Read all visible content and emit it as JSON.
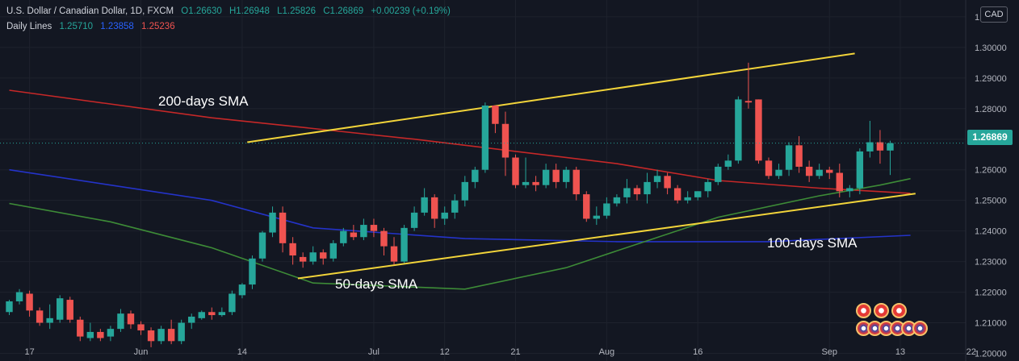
{
  "header": {
    "symbol": "U.S. Dollar / Canadian Dollar, 1D, FXCM",
    "open": "O1.26630",
    "high": "H1.26948",
    "low": "L1.25826",
    "close": "C1.26869",
    "change": "+0.00239 (+0.19%)",
    "indicator_name": "Daily Lines",
    "indicator_values": [
      "1.25710",
      "1.23858",
      "1.25236"
    ]
  },
  "currency": "CAD",
  "last_price": "1.26869",
  "annotations": {
    "sma200": "200-days SMA",
    "sma50": "50-days SMA",
    "sma100": "100-days SMA"
  },
  "colors": {
    "background": "#131722",
    "up": "#26a69a",
    "down": "#ef5350",
    "sma50": "#3d8b37",
    "sma100": "#2433c9",
    "sma200": "#c62828",
    "trend": "#f2d43a"
  },
  "chart_data": {
    "type": "candlestick",
    "ylim": [
      1.1975,
      1.3155
    ],
    "y_ticks": [
      "1.20000",
      "1.21000",
      "1.22000",
      "1.23000",
      "1.24000",
      "1.25000",
      "1.26000",
      "1.27000",
      "1.28000",
      "1.29000",
      "1.30000",
      "1.31000"
    ],
    "x_ticks": [
      {
        "label": "17",
        "i": 2
      },
      {
        "label": "Jun",
        "i": 13
      },
      {
        "label": "14",
        "i": 23
      },
      {
        "label": "Jul",
        "i": 36
      },
      {
        "label": "12",
        "i": 43
      },
      {
        "label": "21",
        "i": 50
      },
      {
        "label": "Aug",
        "i": 59
      },
      {
        "label": "16",
        "i": 68
      },
      {
        "label": "Sep",
        "i": 81
      },
      {
        "label": "13",
        "i": 88
      },
      {
        "label": "22",
        "i": 95
      }
    ],
    "candles": [
      [
        1.2135,
        1.217,
        1.2125,
        1.2175
      ],
      [
        1.217,
        1.22,
        1.216,
        1.221
      ],
      [
        1.2195,
        1.214,
        1.212,
        1.2205
      ],
      [
        1.214,
        1.21,
        1.209,
        1.215
      ],
      [
        1.21,
        1.2115,
        1.208,
        1.216
      ],
      [
        1.211,
        1.218,
        1.21,
        1.219
      ],
      [
        1.2175,
        1.211,
        1.21,
        1.2185
      ],
      [
        1.211,
        1.2055,
        1.204,
        1.212
      ],
      [
        1.205,
        1.207,
        1.204,
        1.21
      ],
      [
        1.207,
        1.205,
        1.204,
        1.208
      ],
      [
        1.2055,
        1.208,
        1.204,
        1.209
      ],
      [
        1.208,
        1.213,
        1.207,
        1.2145
      ],
      [
        1.213,
        1.2095,
        1.208,
        1.214
      ],
      [
        1.2095,
        1.2075,
        1.206,
        1.2105
      ],
      [
        1.2075,
        1.204,
        1.202,
        1.2085
      ],
      [
        1.204,
        1.208,
        1.203,
        1.209
      ],
      [
        1.208,
        1.204,
        1.203,
        1.211
      ],
      [
        1.204,
        1.21,
        1.203,
        1.211
      ],
      [
        1.21,
        1.212,
        1.208,
        1.213
      ],
      [
        1.2115,
        1.2135,
        1.211,
        1.214
      ],
      [
        1.2135,
        1.2125,
        1.211,
        1.215
      ],
      [
        1.2125,
        1.2135,
        1.212,
        1.215
      ],
      [
        1.2135,
        1.2195,
        1.2125,
        1.2205
      ],
      [
        1.219,
        1.2225,
        1.218,
        1.223
      ],
      [
        1.2225,
        1.231,
        1.221,
        1.232
      ],
      [
        1.231,
        1.2395,
        1.23,
        1.24
      ],
      [
        1.2395,
        1.246,
        1.238,
        1.248
      ],
      [
        1.246,
        1.236,
        1.233,
        1.248
      ],
      [
        1.236,
        1.232,
        1.229,
        1.238
      ],
      [
        1.2315,
        1.23,
        1.228,
        1.233
      ],
      [
        1.23,
        1.233,
        1.229,
        1.235
      ],
      [
        1.233,
        1.231,
        1.229,
        1.234
      ],
      [
        1.231,
        1.236,
        1.23,
        1.237
      ],
      [
        1.236,
        1.24,
        1.235,
        1.241
      ],
      [
        1.2395,
        1.238,
        1.237,
        1.242
      ],
      [
        1.238,
        1.242,
        1.237,
        1.244
      ],
      [
        1.242,
        1.24,
        1.238,
        1.244
      ],
      [
        1.24,
        1.235,
        1.232,
        1.241
      ],
      [
        1.235,
        1.23,
        1.229,
        1.238
      ],
      [
        1.23,
        1.241,
        1.2295,
        1.242
      ],
      [
        1.241,
        1.246,
        1.24,
        1.248
      ],
      [
        1.246,
        1.251,
        1.245,
        1.254
      ],
      [
        1.251,
        1.244,
        1.241,
        1.252
      ],
      [
        1.244,
        1.246,
        1.242,
        1.248
      ],
      [
        1.246,
        1.25,
        1.244,
        1.252
      ],
      [
        1.25,
        1.256,
        1.248,
        1.258
      ],
      [
        1.256,
        1.26,
        1.254,
        1.261
      ],
      [
        1.26,
        1.281,
        1.259,
        1.282
      ],
      [
        1.281,
        1.275,
        1.272,
        1.281
      ],
      [
        1.275,
        1.264,
        1.258,
        1.279
      ],
      [
        1.264,
        1.255,
        1.254,
        1.265
      ],
      [
        1.255,
        1.256,
        1.254,
        1.264
      ],
      [
        1.256,
        1.255,
        1.253,
        1.258
      ],
      [
        1.255,
        1.26,
        1.254,
        1.262
      ],
      [
        1.26,
        1.256,
        1.254,
        1.262
      ],
      [
        1.256,
        1.26,
        1.254,
        1.261
      ],
      [
        1.26,
        1.252,
        1.25,
        1.261
      ],
      [
        1.252,
        1.244,
        1.243,
        1.253
      ],
      [
        1.244,
        1.245,
        1.242,
        1.248
      ],
      [
        1.245,
        1.249,
        1.244,
        1.251
      ],
      [
        1.249,
        1.251,
        1.248,
        1.252
      ],
      [
        1.251,
        1.254,
        1.249,
        1.257
      ],
      [
        1.254,
        1.252,
        1.25,
        1.255
      ],
      [
        1.252,
        1.256,
        1.249,
        1.259
      ],
      [
        1.256,
        1.258,
        1.254,
        1.26
      ],
      [
        1.258,
        1.254,
        1.252,
        1.259
      ],
      [
        1.254,
        1.25,
        1.249,
        1.255
      ],
      [
        1.25,
        1.251,
        1.249,
        1.253
      ],
      [
        1.251,
        1.253,
        1.25,
        1.253
      ],
      [
        1.253,
        1.256,
        1.251,
        1.257
      ],
      [
        1.256,
        1.261,
        1.255,
        1.262
      ],
      [
        1.261,
        1.263,
        1.26,
        1.265
      ],
      [
        1.263,
        1.283,
        1.262,
        1.284
      ],
      [
        1.2825,
        1.282,
        1.28,
        1.295
      ],
      [
        1.283,
        1.263,
        1.262,
        1.283
      ],
      [
        1.263,
        1.258,
        1.257,
        1.264
      ],
      [
        1.258,
        1.26,
        1.257,
        1.262
      ],
      [
        1.26,
        1.268,
        1.258,
        1.269
      ],
      [
        1.268,
        1.261,
        1.259,
        1.271
      ],
      [
        1.261,
        1.258,
        1.256,
        1.263
      ],
      [
        1.258,
        1.26,
        1.257,
        1.262
      ],
      [
        1.26,
        1.259,
        1.257,
        1.261
      ],
      [
        1.259,
        1.253,
        1.251,
        1.262
      ],
      [
        1.253,
        1.254,
        1.251,
        1.255
      ],
      [
        1.254,
        1.266,
        1.252,
        1.267
      ],
      [
        1.266,
        1.269,
        1.264,
        1.276
      ],
      [
        1.269,
        1.2663,
        1.262,
        1.273
      ],
      [
        1.2663,
        1.2687,
        1.2583,
        1.2695
      ]
    ],
    "sma200": [
      [
        0,
        1.286
      ],
      [
        20,
        1.277
      ],
      [
        40,
        1.27
      ],
      [
        60,
        1.262
      ],
      [
        70,
        1.2565
      ],
      [
        80,
        1.254
      ],
      [
        89,
        1.2523
      ]
    ],
    "sma100": [
      [
        0,
        1.26
      ],
      [
        10,
        1.255
      ],
      [
        20,
        1.25
      ],
      [
        30,
        1.241
      ],
      [
        45,
        1.2375
      ],
      [
        60,
        1.2365
      ],
      [
        75,
        1.2365
      ],
      [
        89,
        1.2386
      ]
    ],
    "sma50": [
      [
        0,
        1.249
      ],
      [
        10,
        1.243
      ],
      [
        20,
        1.2345
      ],
      [
        30,
        1.223
      ],
      [
        45,
        1.221
      ],
      [
        55,
        1.228
      ],
      [
        70,
        1.2445
      ],
      [
        80,
        1.2515
      ],
      [
        86,
        1.255
      ],
      [
        89,
        1.2571
      ]
    ],
    "channel_upper": [
      [
        23.5,
        1.269
      ],
      [
        83.5,
        1.298
      ]
    ],
    "channel_lower": [
      [
        28.5,
        1.2245
      ],
      [
        89.5,
        1.2522
      ]
    ]
  }
}
